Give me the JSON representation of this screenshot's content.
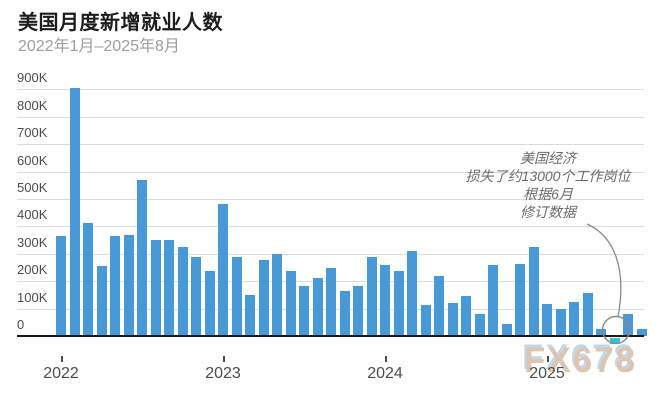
{
  "header": {
    "title": "美国月度新增就业人数",
    "subtitle": "2022年1月–2025年8月"
  },
  "annotation": {
    "lines": [
      "美国经济",
      "损失了约13000个工作岗位",
      "根据6月",
      "修订数据"
    ]
  },
  "watermark": {
    "text": "FX678"
  },
  "colors": {
    "bar": "#4a99d7",
    "negative_bar": "#35c4d4",
    "grid": "#dbdbdb",
    "axis": "#1a1a1a",
    "tick_text": "#4d4d4d",
    "title_text": "#1d1d1d",
    "subtitle_text": "#9e9e9e",
    "annotation_text": "#6b6b6b",
    "connector": "#8a8a8a",
    "watermark_tan": "#dcc5b1",
    "watermark_blue": "#c3d7eb"
  },
  "chart_data": {
    "type": "bar",
    "title": "美国月度新增就业人数",
    "subtitle": "2022年1月–2025年8月",
    "unit": "new jobs, thousands (K)",
    "grid": true,
    "legend": false,
    "ylim_k": [
      0,
      900
    ],
    "ytick_labels": [
      "0",
      "100K",
      "200K",
      "300K",
      "400K",
      "500K",
      "600K",
      "700K",
      "800K",
      "900K"
    ],
    "year_labels": [
      "2022",
      "2023",
      "2024",
      "2025"
    ],
    "categories": [
      "2022-01",
      "2022-02",
      "2022-03",
      "2022-04",
      "2022-05",
      "2022-06",
      "2022-07",
      "2022-08",
      "2022-09",
      "2022-10",
      "2022-11",
      "2022-12",
      "2023-01",
      "2023-02",
      "2023-03",
      "2023-04",
      "2023-05",
      "2023-06",
      "2023-07",
      "2023-08",
      "2023-09",
      "2023-10",
      "2023-11",
      "2023-12",
      "2024-01",
      "2024-02",
      "2024-03",
      "2024-04",
      "2024-05",
      "2024-06",
      "2024-07",
      "2024-08",
      "2024-09",
      "2024-10",
      "2024-11",
      "2024-12",
      "2025-01",
      "2025-02",
      "2025-03",
      "2025-04",
      "2025-05",
      "2025-06",
      "2025-07",
      "2025-08"
    ],
    "values_k": [
      364,
      904,
      414,
      254,
      364,
      370,
      568,
      352,
      350,
      324,
      290,
      239,
      480,
      288,
      148,
      277,
      301,
      237,
      184,
      211,
      247,
      164,
      181,
      288,
      258,
      239,
      310,
      113,
      219,
      122,
      147,
      82,
      258,
      45,
      262,
      324,
      116,
      100,
      124,
      158,
      24,
      -13,
      79,
      24
    ],
    "highlight": {
      "category": "2025-06",
      "value_k": -13,
      "circled": true
    }
  }
}
